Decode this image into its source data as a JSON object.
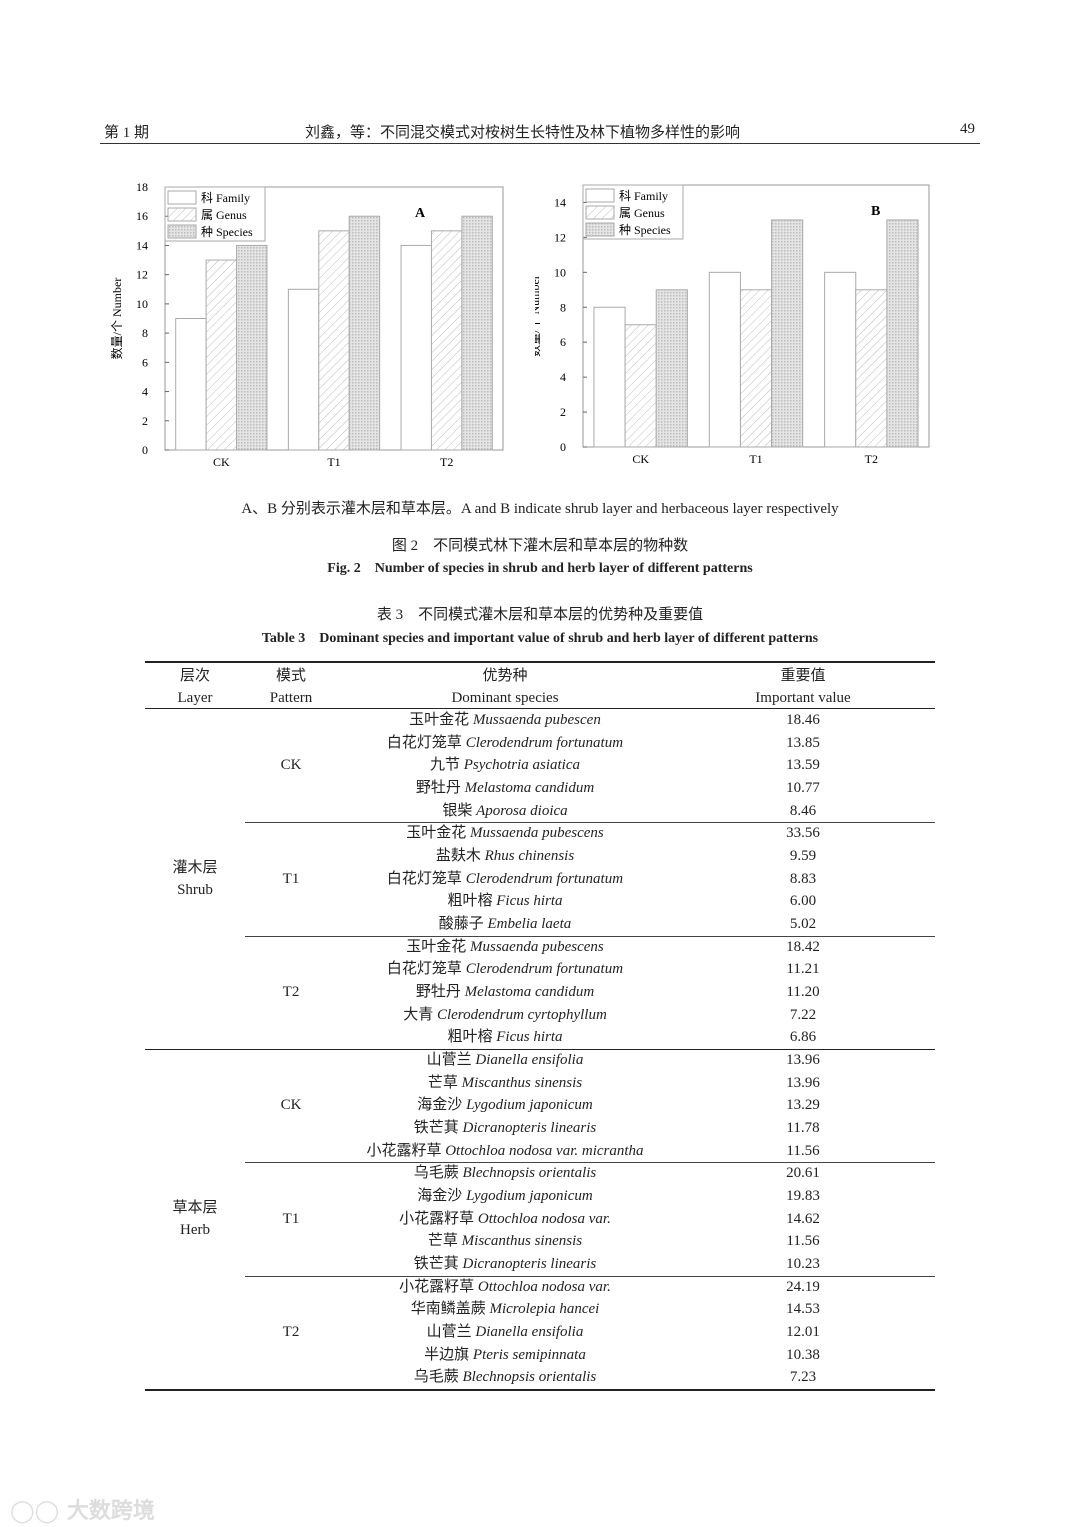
{
  "header": {
    "issue": "第 1 期",
    "running_title": "刘鑫，等：不同混交模式对桉树生长特性及林下植物多样性的影响",
    "page_number": "49"
  },
  "figure": {
    "note": "A、B 分别表示灌木层和草本层。A and B indicate shrub layer and herbaceous layer respectively",
    "caption_cn": "图 2　不同模式林下灌木层和草本层的物种数",
    "caption_en": "Fig. 2　Number of species in shrub and herb layer of different patterns"
  },
  "chart_data": [
    {
      "type": "bar",
      "panel_label": "A",
      "ylabel": "数量/个 Number",
      "categories": [
        "CK",
        "T1",
        "T2"
      ],
      "ylim": [
        0,
        18
      ],
      "yticks": [
        0,
        2,
        4,
        6,
        8,
        10,
        12,
        14,
        16,
        18
      ],
      "legend_position": "top-left",
      "series": [
        {
          "name": "科 Family",
          "values": [
            9,
            11,
            14
          ],
          "pattern": "blank"
        },
        {
          "name": "属 Genus",
          "values": [
            13,
            15,
            15
          ],
          "pattern": "diagonal-hatch"
        },
        {
          "name": "种 Species",
          "values": [
            14,
            16,
            16
          ],
          "pattern": "crosshatch"
        }
      ]
    },
    {
      "type": "bar",
      "panel_label": "B",
      "ylabel": "数量/个 Number",
      "categories": [
        "CK",
        "T1",
        "T2"
      ],
      "ylim": [
        0,
        15
      ],
      "yticks": [
        0,
        2,
        4,
        6,
        8,
        10,
        12,
        14
      ],
      "legend_position": "top-left",
      "series": [
        {
          "name": "科 Family",
          "values": [
            8,
            10,
            10
          ],
          "pattern": "blank"
        },
        {
          "name": "属 Genus",
          "values": [
            7,
            9,
            9
          ],
          "pattern": "diagonal-hatch"
        },
        {
          "name": "种 Species",
          "values": [
            9,
            13,
            13
          ],
          "pattern": "crosshatch"
        }
      ]
    }
  ],
  "table": {
    "caption_cn": "表 3　不同模式灌木层和草本层的优势种及重要值",
    "caption_en": "Table 3　Dominant species and important value of shrub and herb layer of different patterns",
    "headers": [
      {
        "cn": "层次",
        "en": "Layer"
      },
      {
        "cn": "模式",
        "en": "Pattern"
      },
      {
        "cn": "优势种",
        "en": "Dominant species"
      },
      {
        "cn": "重要值",
        "en": "Important value"
      }
    ],
    "layers": [
      {
        "cn": "灌木层",
        "en": "Shrub",
        "patterns": [
          {
            "name": "CK",
            "rows": [
              {
                "cn": "玉叶金花",
                "latin": "Mussaenda pubescen",
                "value": "18.46"
              },
              {
                "cn": "白花灯笼草",
                "latin": "Clerodendrum fortunatum",
                "value": "13.85"
              },
              {
                "cn": "九节",
                "latin": "Psychotria asiatica",
                "value": "13.59"
              },
              {
                "cn": "野牡丹",
                "latin": "Melastoma candidum",
                "value": "10.77"
              },
              {
                "cn": "银柴",
                "latin": "Aporosa dioica",
                "value": "8.46"
              }
            ]
          },
          {
            "name": "T1",
            "rows": [
              {
                "cn": "玉叶金花",
                "latin": "Mussaenda pubescens",
                "value": "33.56"
              },
              {
                "cn": "盐麸木",
                "latin": "Rhus chinensis",
                "value": "9.59"
              },
              {
                "cn": "白花灯笼草",
                "latin": "Clerodendrum fortunatum",
                "value": "8.83"
              },
              {
                "cn": "粗叶榕",
                "latin": "Ficus hirta",
                "value": "6.00"
              },
              {
                "cn": "酸藤子",
                "latin": "Embelia laeta",
                "value": "5.02"
              }
            ]
          },
          {
            "name": "T2",
            "rows": [
              {
                "cn": "玉叶金花",
                "latin": "Mussaenda pubescens",
                "value": "18.42"
              },
              {
                "cn": "白花灯笼草",
                "latin": "Clerodendrum fortunatum",
                "value": "11.21"
              },
              {
                "cn": "野牡丹",
                "latin": "Melastoma candidum",
                "value": "11.20"
              },
              {
                "cn": "大青",
                "latin": "Clerodendrum cyrtophyllum",
                "value": "7.22"
              },
              {
                "cn": "粗叶榕",
                "latin": "Ficus hirta",
                "value": "6.86"
              }
            ]
          }
        ]
      },
      {
        "cn": "草本层",
        "en": "Herb",
        "patterns": [
          {
            "name": "CK",
            "rows": [
              {
                "cn": "山菅兰",
                "latin": "Dianella ensifolia",
                "value": "13.96"
              },
              {
                "cn": "芒草",
                "latin": "Miscanthus sinensis",
                "value": "13.96"
              },
              {
                "cn": "海金沙",
                "latin": "Lygodium japonicum",
                "value": "13.29"
              },
              {
                "cn": "铁芒萁",
                "latin": "Dicranopteris linearis",
                "value": "11.78"
              },
              {
                "cn": "小花露籽草",
                "latin": "Ottochloa nodosa var. micrantha",
                "value": "11.56"
              }
            ]
          },
          {
            "name": "T1",
            "rows": [
              {
                "cn": "乌毛蕨",
                "latin": "Blechnopsis orientalis",
                "value": "20.61"
              },
              {
                "cn": "海金沙",
                "latin": "Lygodium japonicum",
                "value": "19.83"
              },
              {
                "cn": "小花露籽草",
                "latin": "Ottochloa nodosa var.",
                "value": "14.62"
              },
              {
                "cn": "芒草",
                "latin": "Miscanthus sinensis",
                "value": "11.56"
              },
              {
                "cn": "铁芒萁",
                "latin": "Dicranopteris linearis",
                "value": "10.23"
              }
            ]
          },
          {
            "name": "T2",
            "rows": [
              {
                "cn": "小花露籽草",
                "latin": "Ottochloa nodosa var.",
                "value": "24.19"
              },
              {
                "cn": "华南鳞盖蕨",
                "latin": "Microlepia hancei",
                "value": "14.53"
              },
              {
                "cn": "山菅兰",
                "latin": "Dianella ensifolia",
                "value": "12.01"
              },
              {
                "cn": "半边旗",
                "latin": "Pteris semipinnata",
                "value": "10.38"
              },
              {
                "cn": "乌毛蕨",
                "latin": "Blechnopsis orientalis",
                "value": "7.23"
              }
            ]
          }
        ]
      }
    ]
  },
  "watermark": "大数跨境"
}
